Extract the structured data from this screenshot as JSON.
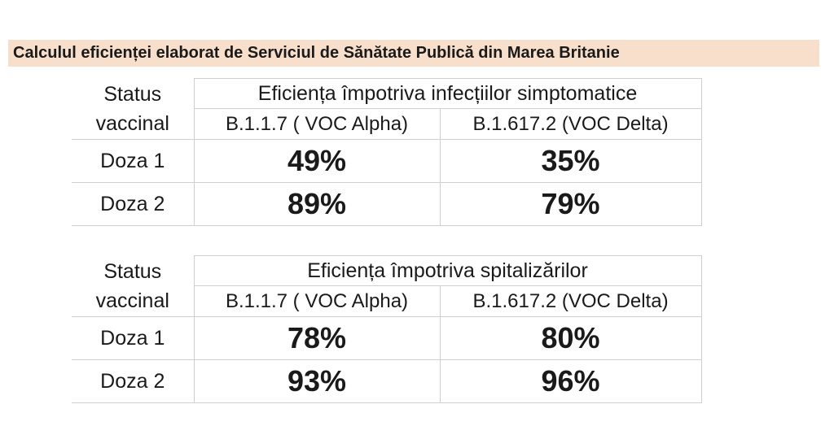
{
  "title": "Calculul eficienței elaborat de  Serviciul de Sănătate Publică din Marea Britanie",
  "tables": [
    {
      "status_line1": "Status",
      "status_line2": "vaccinal",
      "group_header": "Eficiența împotriva infecțiilor simptomatice",
      "variants": [
        "B.1.1.7 ( VOC Alpha)",
        "B.1.617.2 (VOC Delta)"
      ],
      "rows": [
        {
          "dose": "Doza 1",
          "alpha": "49%",
          "delta": "35%"
        },
        {
          "dose": "Doza 2",
          "alpha": "89%",
          "delta": "79%"
        }
      ]
    },
    {
      "status_line1": "Status",
      "status_line2": "vaccinal",
      "group_header": "Eficiența împotriva spitalizărilor",
      "variants": [
        "B.1.1.7 ( VOC Alpha)",
        "B.1.617.2 (VOC Delta)"
      ],
      "rows": [
        {
          "dose": "Doza 1",
          "alpha": "78%",
          "delta": "80%"
        },
        {
          "dose": "Doza 2",
          "alpha": "93%",
          "delta": "96%"
        }
      ]
    }
  ]
}
